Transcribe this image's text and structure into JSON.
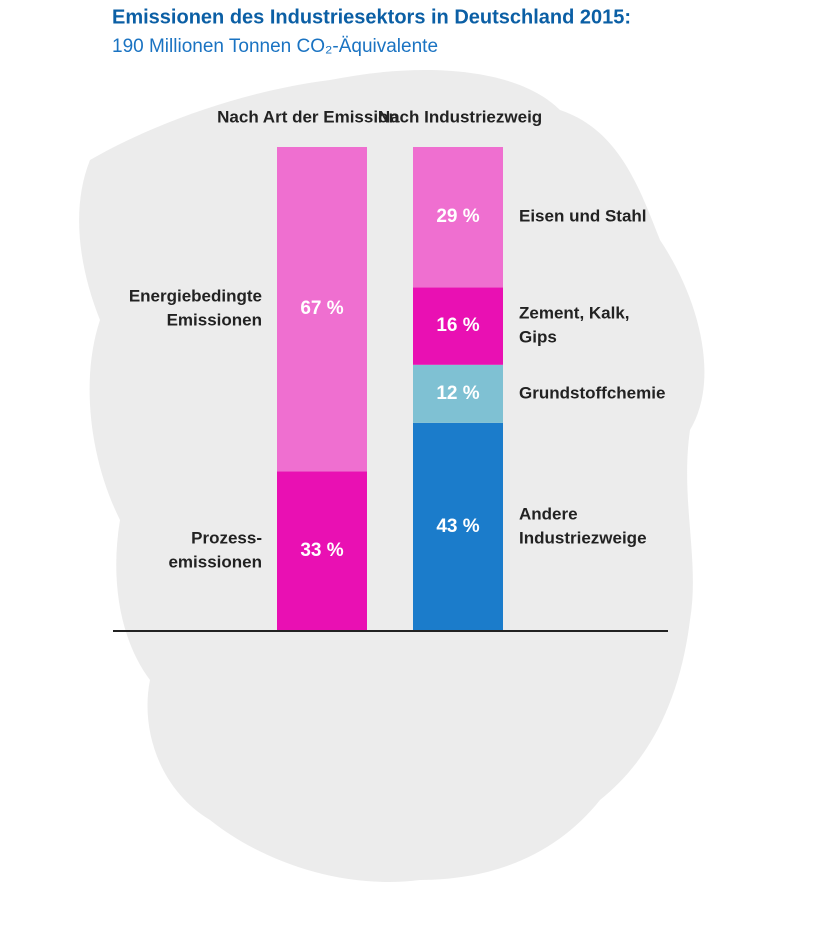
{
  "chart_data": {
    "type": "stacked_bar",
    "title": "Emissionen des Industriesektors in Deutschland 2015:",
    "subtitle": "190 Millionen Tonnen CO₂-Äquivalente",
    "ylim": [
      0,
      100
    ],
    "bars": [
      {
        "name": "Nach Art der Emission",
        "segments": [
          {
            "label": [
              "Prozess-",
              "emissionen"
            ],
            "value": 33,
            "value_label": "33 %",
            "color": "#e910b3"
          },
          {
            "label": [
              "Energiebedingte",
              "Emissionen"
            ],
            "value": 67,
            "value_label": "67 %",
            "color": "#ef6fd0"
          }
        ]
      },
      {
        "name": "Nach Industriezweig",
        "segments": [
          {
            "label": [
              "Andere",
              "Industriezweige"
            ],
            "value": 43,
            "value_label": "43 %",
            "color": "#1b7ccb"
          },
          {
            "label": [
              "Grundstoffchemie"
            ],
            "value": 12,
            "value_label": "12 %",
            "color": "#7fc1d3"
          },
          {
            "label": [
              "Zement, Kalk,",
              "Gips"
            ],
            "value": 16,
            "value_label": "16 %",
            "color": "#e910b3"
          },
          {
            "label": [
              "Eisen und Stahl"
            ],
            "value": 29,
            "value_label": "29 %",
            "color": "#ef6fd0"
          }
        ]
      }
    ]
  }
}
